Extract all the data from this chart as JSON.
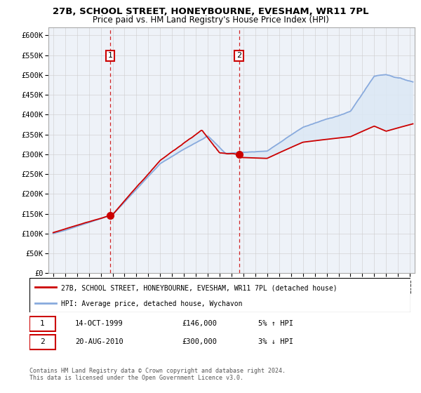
{
  "title": "27B, SCHOOL STREET, HONEYBOURNE, EVESHAM, WR11 7PL",
  "subtitle": "Price paid vs. HM Land Registry's House Price Index (HPI)",
  "ylabel_ticks": [
    "£0",
    "£50K",
    "£100K",
    "£150K",
    "£200K",
    "£250K",
    "£300K",
    "£350K",
    "£400K",
    "£450K",
    "£500K",
    "£550K",
    "£600K"
  ],
  "ylim": [
    0,
    620000
  ],
  "yticks": [
    0,
    50000,
    100000,
    150000,
    200000,
    250000,
    300000,
    350000,
    400000,
    450000,
    500000,
    550000,
    600000
  ],
  "xlim_start": 1994.6,
  "xlim_end": 2025.4,
  "sale1_x": 1999.79,
  "sale1_y": 146000,
  "sale2_x": 2010.63,
  "sale2_y": 300000,
  "sale1_label": "1",
  "sale2_label": "2",
  "sale1_date": "14-OCT-1999",
  "sale1_price": "£146,000",
  "sale1_pct": "5% ↑ HPI",
  "sale2_date": "20-AUG-2010",
  "sale2_price": "£300,000",
  "sale2_pct": "3% ↓ HPI",
  "legend_line1": "27B, SCHOOL STREET, HONEYBOURNE, EVESHAM, WR11 7PL (detached house)",
  "legend_line2": "HPI: Average price, detached house, Wychavon",
  "footer": "Contains HM Land Registry data © Crown copyright and database right 2024.\nThis data is licensed under the Open Government Licence v3.0.",
  "line_color_red": "#cc0000",
  "line_color_blue": "#88aadd",
  "fill_color_blue": "#dce8f5",
  "bg_color": "#eef2f8",
  "grid_color": "#cccccc"
}
